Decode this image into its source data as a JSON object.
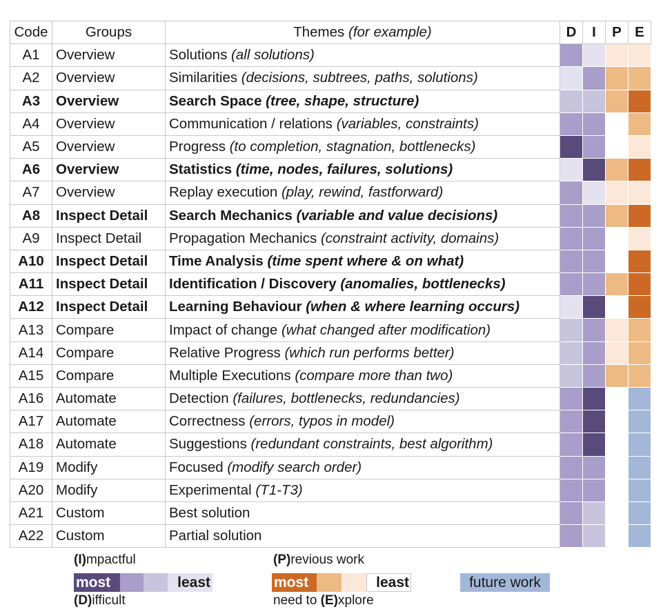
{
  "headers": {
    "code": "Code",
    "groups": "Groups",
    "themes_main": "Themes",
    "themes_italic": "(for example)",
    "d": "D",
    "i": "I",
    "p": "P",
    "e": "E"
  },
  "colors": {
    "purple": {
      "0": "#ffffff",
      "1": "#e4e2ef",
      "2": "#c9c4de",
      "3": "#a89ec9",
      "4": "#594a7c"
    },
    "orange": {
      "0": "#ffffff",
      "1": "#fbe8d9",
      "2": "#eeba84",
      "3": "#cc6a25"
    },
    "future": "#a3b8d9"
  },
  "rows": [
    {
      "code": "A1",
      "group": "Overview",
      "theme": "Solutions ",
      "example": "(all solutions)",
      "bold": false,
      "d": 3,
      "i": 1,
      "p": 1,
      "e": 1
    },
    {
      "code": "A2",
      "group": "Overview",
      "theme": "Similarities ",
      "example": "(decisions, subtrees, paths, solutions)",
      "bold": false,
      "d": 1,
      "i": 3,
      "p": 2,
      "e": 2
    },
    {
      "code": "A3",
      "group": "Overview",
      "theme": "Search Space ",
      "example": "(tree, shape, structure)",
      "bold": true,
      "d": 2,
      "i": 2,
      "p": 2,
      "e": 3
    },
    {
      "code": "A4",
      "group": "Overview",
      "theme": "Communication / relations ",
      "example": "(variables, constraints)",
      "bold": false,
      "d": 3,
      "i": 3,
      "p": 0,
      "e": 2
    },
    {
      "code": "A5",
      "group": "Overview",
      "theme": "Progress ",
      "example": "(to completion, stagnation, bottlenecks)",
      "bold": false,
      "d": 4,
      "i": 3,
      "p": 0,
      "e": 1
    },
    {
      "code": "A6",
      "group": "Overview",
      "theme": "Statistics ",
      "example": "(time, nodes, failures, solutions)",
      "bold": true,
      "d": 1,
      "i": 4,
      "p": 2,
      "e": 3
    },
    {
      "code": "A7",
      "group": "Overview",
      "theme": "Replay execution ",
      "example": "(play, rewind, fastforward)",
      "bold": false,
      "d": 3,
      "i": 1,
      "p": 1,
      "e": 1
    },
    {
      "code": "A8",
      "group": "Inspect Detail",
      "theme": "Search Mechanics ",
      "example": "(variable and value decisions)",
      "bold": true,
      "d": 3,
      "i": 3,
      "p": 2,
      "e": 3
    },
    {
      "code": "A9",
      "group": "Inspect Detail",
      "theme": "Propagation Mechanics ",
      "example": "(constraint activity, domains)",
      "bold": false,
      "d": 3,
      "i": 3,
      "p": 0,
      "e": 1
    },
    {
      "code": "A10",
      "group": "Inspect Detail",
      "theme": "Time Analysis ",
      "example": "(time spent where & on what)",
      "bold": true,
      "d": 3,
      "i": 3,
      "p": 0,
      "e": 3
    },
    {
      "code": "A11",
      "group": "Inspect Detail",
      "theme": "Identification / Discovery ",
      "example": "(anomalies, bottlenecks)",
      "bold": true,
      "d": 3,
      "i": 3,
      "p": 2,
      "e": 3
    },
    {
      "code": "A12",
      "group": "Inspect Detail",
      "theme": "Learning Behaviour ",
      "example": "(when & where learning occurs)",
      "bold": true,
      "d": 1,
      "i": 4,
      "p": 0,
      "e": 3
    },
    {
      "code": "A13",
      "group": "Compare",
      "theme": "Impact of change ",
      "example": "(what changed after modification)",
      "bold": false,
      "d": 2,
      "i": 3,
      "p": 1,
      "e": 2
    },
    {
      "code": "A14",
      "group": "Compare",
      "theme": "Relative Progress ",
      "example": "(which run performs better)",
      "bold": false,
      "d": 2,
      "i": 3,
      "p": 1,
      "e": 2
    },
    {
      "code": "A15",
      "group": "Compare",
      "theme": "Multiple Executions ",
      "example": "(compare more than two)",
      "bold": false,
      "d": 2,
      "i": 3,
      "p": 2,
      "e": 2
    },
    {
      "code": "A16",
      "group": "Automate",
      "theme": "Detection ",
      "example": "(failures, bottlenecks, redundancies)",
      "bold": false,
      "d": 3,
      "i": 4,
      "p": 0,
      "e": "F"
    },
    {
      "code": "A17",
      "group": "Automate",
      "theme": "Correctness ",
      "example": "(errors, typos in model)",
      "bold": false,
      "d": 3,
      "i": 4,
      "p": 0,
      "e": "F"
    },
    {
      "code": "A18",
      "group": "Automate",
      "theme": "Suggestions ",
      "example": "(redundant constraints, best algorithm)",
      "bold": false,
      "d": 3,
      "i": 4,
      "p": 0,
      "e": "F"
    },
    {
      "code": "A19",
      "group": "Modify",
      "theme": "Focused ",
      "example": "(modify search order)",
      "bold": false,
      "d": 3,
      "i": 3,
      "p": 0,
      "e": "F"
    },
    {
      "code": "A20",
      "group": "Modify",
      "theme": "Experimental ",
      "example": "(T1-T3)",
      "bold": false,
      "d": 3,
      "i": 3,
      "p": 0,
      "e": "F"
    },
    {
      "code": "A21",
      "group": "Custom",
      "theme": "Best solution",
      "example": "",
      "bold": false,
      "d": 3,
      "i": 2,
      "p": 0,
      "e": "F"
    },
    {
      "code": "A22",
      "group": "Custom",
      "theme": "Partial solution",
      "example": "",
      "bold": false,
      "d": 3,
      "i": 2,
      "p": 0,
      "e": "F"
    }
  ],
  "legend": {
    "impactful_bold": "(I)",
    "impactful_rest": "mpactful",
    "difficult_bold": "(D)",
    "difficult_rest": "ifficult",
    "previous_bold": "(P)",
    "previous_rest": "revious work",
    "explore_pre": "need to ",
    "explore_bold": "(E)",
    "explore_rest": "xplore",
    "most": "most",
    "least": "least",
    "future_work": "future work"
  }
}
